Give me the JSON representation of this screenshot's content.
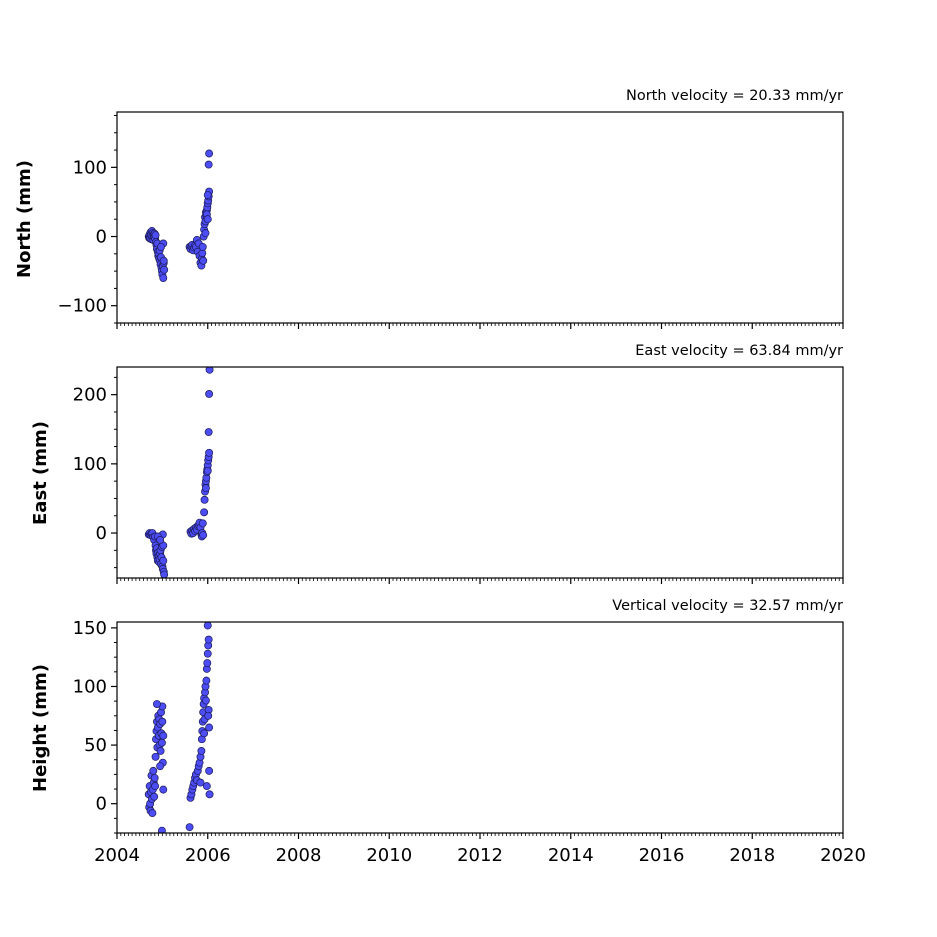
{
  "chart_data": {
    "type": "scatter",
    "x_ticks": [
      2004,
      2006,
      2008,
      2010,
      2012,
      2014,
      2016,
      2018,
      2020
    ],
    "xlim": [
      2004,
      2020
    ],
    "marker_color": "#4d4df5",
    "marker_edge": "#1a1a55",
    "panels": [
      {
        "id": "north",
        "title": "North velocity = 20.33 mm/yr",
        "ylabel": "North (mm)",
        "ylim": [
          -125,
          180
        ],
        "yticks": [
          -100,
          0,
          100
        ],
        "y_tick_labels": [
          "−100",
          "0",
          "100"
        ],
        "points": [
          [
            2004.7,
            0
          ],
          [
            2004.71,
            -2
          ],
          [
            2004.72,
            3
          ],
          [
            2004.73,
            -3
          ],
          [
            2004.74,
            6
          ],
          [
            2004.75,
            2
          ],
          [
            2004.76,
            -4
          ],
          [
            2004.77,
            8
          ],
          [
            2004.78,
            0
          ],
          [
            2004.79,
            5
          ],
          [
            2004.8,
            -5
          ],
          [
            2004.81,
            3
          ],
          [
            2004.82,
            -1
          ],
          [
            2004.83,
            4
          ],
          [
            2004.84,
            -3
          ],
          [
            2004.85,
            2
          ],
          [
            2004.86,
            -8
          ],
          [
            2004.87,
            -12
          ],
          [
            2004.88,
            -18
          ],
          [
            2004.89,
            -10
          ],
          [
            2004.9,
            -22
          ],
          [
            2004.91,
            -28
          ],
          [
            2004.92,
            -25
          ],
          [
            2004.93,
            -32
          ],
          [
            2004.94,
            -20
          ],
          [
            2004.95,
            -35
          ],
          [
            2004.96,
            -40
          ],
          [
            2004.97,
            -30
          ],
          [
            2004.98,
            -45
          ],
          [
            2004.99,
            -50
          ],
          [
            2005.0,
            -55
          ],
          [
            2005.01,
            -42
          ],
          [
            2005.02,
            -60
          ],
          [
            2005.03,
            -38
          ],
          [
            2005.04,
            -48
          ],
          [
            2005.02,
            -10
          ],
          [
            2005.03,
            -35
          ],
          [
            2004.97,
            -15
          ],
          [
            2005.6,
            -15
          ],
          [
            2005.62,
            -18
          ],
          [
            2005.64,
            -14
          ],
          [
            2005.66,
            -12
          ],
          [
            2005.68,
            -20
          ],
          [
            2005.7,
            -16
          ],
          [
            2005.72,
            -13
          ],
          [
            2005.74,
            -15
          ],
          [
            2005.76,
            -5
          ],
          [
            2005.78,
            -22
          ],
          [
            2005.8,
            -10
          ],
          [
            2005.82,
            -28
          ],
          [
            2005.84,
            -38
          ],
          [
            2005.86,
            -42
          ],
          [
            2005.87,
            -32
          ],
          [
            2005.88,
            -24
          ],
          [
            2005.89,
            -15
          ],
          [
            2005.9,
            -35
          ],
          [
            2005.91,
            0
          ],
          [
            2005.92,
            10
          ],
          [
            2005.93,
            18
          ],
          [
            2005.94,
            28
          ],
          [
            2005.95,
            22
          ],
          [
            2005.96,
            35
          ],
          [
            2005.97,
            30
          ],
          [
            2005.98,
            38
          ],
          [
            2005.99,
            42
          ],
          [
            2006.0,
            48
          ],
          [
            2006.01,
            52
          ],
          [
            2006.02,
            58
          ],
          [
            2006.03,
            65
          ],
          [
            2006.0,
            60
          ],
          [
            2006.02,
            104
          ],
          [
            2006.03,
            120
          ],
          [
            2005.95,
            5
          ],
          [
            2005.98,
            32
          ],
          [
            2006.0,
            25
          ]
        ]
      },
      {
        "id": "east",
        "title": "East velocity = 63.84 mm/yr",
        "ylabel": "East (mm)",
        "ylim": [
          -65,
          240
        ],
        "yticks": [
          0,
          100,
          200
        ],
        "y_tick_labels": [
          "0",
          "100",
          "200"
        ],
        "points": [
          [
            2004.7,
            -2
          ],
          [
            2004.72,
            0
          ],
          [
            2004.74,
            -3
          ],
          [
            2004.76,
            -1
          ],
          [
            2004.78,
            0
          ],
          [
            2004.8,
            -6
          ],
          [
            2004.82,
            -10
          ],
          [
            2004.84,
            -5
          ],
          [
            2004.85,
            -18
          ],
          [
            2004.86,
            -25
          ],
          [
            2004.87,
            -30
          ],
          [
            2004.88,
            -22
          ],
          [
            2004.89,
            -35
          ],
          [
            2004.9,
            -40
          ],
          [
            2004.91,
            -28
          ],
          [
            2004.92,
            -33
          ],
          [
            2004.93,
            -42
          ],
          [
            2004.94,
            -38
          ],
          [
            2004.95,
            -30
          ],
          [
            2004.96,
            -25
          ],
          [
            2004.97,
            -45
          ],
          [
            2004.98,
            -35
          ],
          [
            2004.99,
            -20
          ],
          [
            2005.0,
            -48
          ],
          [
            2005.01,
            -52
          ],
          [
            2005.02,
            -40
          ],
          [
            2005.03,
            -56
          ],
          [
            2005.04,
            -60
          ],
          [
            2005.01,
            -2
          ],
          [
            2005.02,
            -18
          ],
          [
            2004.9,
            -5
          ],
          [
            2004.95,
            -10
          ],
          [
            2005.62,
            2
          ],
          [
            2005.64,
            -1
          ],
          [
            2005.66,
            4
          ],
          [
            2005.68,
            0
          ],
          [
            2005.7,
            6
          ],
          [
            2005.72,
            3
          ],
          [
            2005.74,
            8
          ],
          [
            2005.76,
            5
          ],
          [
            2005.78,
            10
          ],
          [
            2005.8,
            12
          ],
          [
            2005.82,
            15
          ],
          [
            2005.84,
            8
          ],
          [
            2005.86,
            -2
          ],
          [
            2005.87,
            -5
          ],
          [
            2005.88,
            0
          ],
          [
            2005.89,
            14
          ],
          [
            2005.9,
            -3
          ],
          [
            2005.92,
            30
          ],
          [
            2005.93,
            48
          ],
          [
            2005.94,
            60
          ],
          [
            2005.95,
            70
          ],
          [
            2005.96,
            75
          ],
          [
            2005.97,
            80
          ],
          [
            2005.98,
            88
          ],
          [
            2005.99,
            92
          ],
          [
            2006.0,
            98
          ],
          [
            2006.01,
            105
          ],
          [
            2006.02,
            110
          ],
          [
            2006.03,
            116
          ],
          [
            2006.02,
            146
          ],
          [
            2006.03,
            201
          ],
          [
            2006.04,
            236
          ],
          [
            2005.96,
            65
          ],
          [
            2006.0,
            90
          ]
        ]
      },
      {
        "id": "height",
        "title": "Vertical velocity = 32.57 mm/yr",
        "ylabel": "Height (mm)",
        "ylim": [
          -25,
          155
        ],
        "yticks": [
          0,
          50,
          100,
          150
        ],
        "y_tick_labels": [
          "0",
          "50",
          "100",
          "150"
        ],
        "points": [
          [
            2004.7,
            8
          ],
          [
            2004.71,
            -3
          ],
          [
            2004.72,
            15
          ],
          [
            2004.73,
            0
          ],
          [
            2004.74,
            -6
          ],
          [
            2004.75,
            10
          ],
          [
            2004.76,
            24
          ],
          [
            2004.77,
            4
          ],
          [
            2004.78,
            -8
          ],
          [
            2004.79,
            12
          ],
          [
            2004.8,
            28
          ],
          [
            2004.81,
            18
          ],
          [
            2004.82,
            6
          ],
          [
            2004.83,
            22
          ],
          [
            2004.84,
            15
          ],
          [
            2004.85,
            40
          ],
          [
            2004.86,
            55
          ],
          [
            2004.87,
            62
          ],
          [
            2004.88,
            70
          ],
          [
            2004.89,
            48
          ],
          [
            2004.9,
            65
          ],
          [
            2004.91,
            75
          ],
          [
            2004.92,
            58
          ],
          [
            2004.93,
            72
          ],
          [
            2004.94,
            50
          ],
          [
            2004.95,
            68
          ],
          [
            2004.96,
            45
          ],
          [
            2004.97,
            78
          ],
          [
            2004.98,
            60
          ],
          [
            2004.99,
            52
          ],
          [
            2005.0,
            70
          ],
          [
            2005.01,
            35
          ],
          [
            2005.02,
            58
          ],
          [
            2005.0,
            83
          ],
          [
            2004.88,
            85
          ],
          [
            2005.02,
            12
          ],
          [
            2004.99,
            -23
          ],
          [
            2004.95,
            32
          ],
          [
            2005.6,
            -20
          ],
          [
            2005.62,
            5
          ],
          [
            2005.64,
            8
          ],
          [
            2005.66,
            12
          ],
          [
            2005.68,
            15
          ],
          [
            2005.7,
            18
          ],
          [
            2005.72,
            22
          ],
          [
            2005.74,
            25
          ],
          [
            2005.76,
            20
          ],
          [
            2005.78,
            28
          ],
          [
            2005.8,
            32
          ],
          [
            2005.82,
            35
          ],
          [
            2005.84,
            40
          ],
          [
            2005.86,
            45
          ],
          [
            2005.87,
            55
          ],
          [
            2005.88,
            62
          ],
          [
            2005.89,
            70
          ],
          [
            2005.9,
            78
          ],
          [
            2005.91,
            85
          ],
          [
            2005.92,
            90
          ],
          [
            2005.93,
            72
          ],
          [
            2005.94,
            95
          ],
          [
            2005.95,
            100
          ],
          [
            2005.96,
            88
          ],
          [
            2005.97,
            105
          ],
          [
            2005.98,
            115
          ],
          [
            2005.99,
            120
          ],
          [
            2006.0,
            128
          ],
          [
            2006.01,
            135
          ],
          [
            2006.02,
            140
          ],
          [
            2006.0,
            152
          ],
          [
            2006.02,
            80
          ],
          [
            2006.03,
            65
          ],
          [
            2006.04,
            8
          ],
          [
            2006.03,
            28
          ],
          [
            2005.98,
            15
          ],
          [
            2005.84,
            18
          ],
          [
            2005.92,
            60
          ],
          [
            2006.01,
            75
          ]
        ]
      }
    ]
  }
}
